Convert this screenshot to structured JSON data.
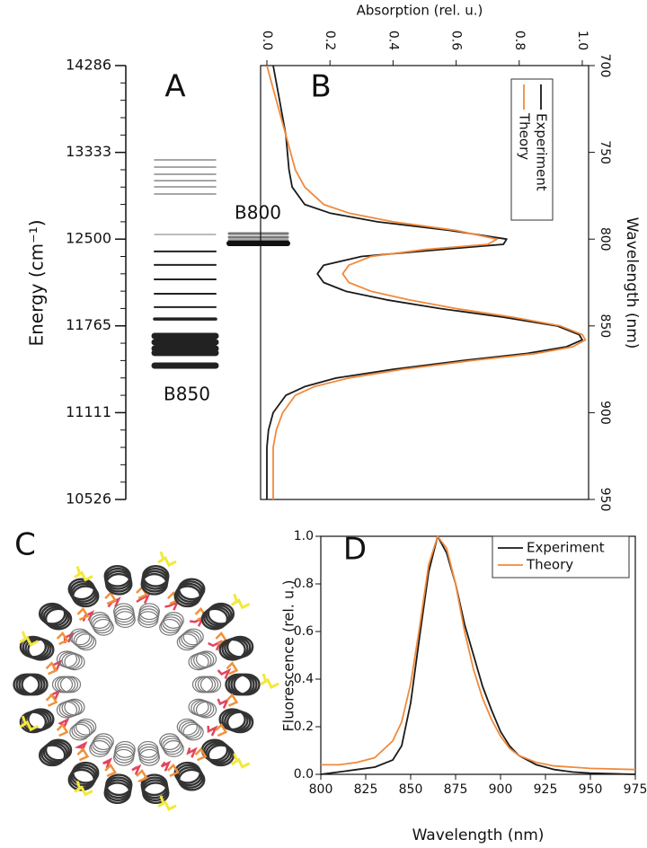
{
  "chart_data": [
    {
      "type": "levels",
      "label": "A",
      "ylabel": "Energy (cm⁻¹)",
      "ylim": [
        14286,
        10526
      ],
      "yscale": "reciprocal",
      "yticks": [
        14286,
        13333,
        12500,
        11765,
        11111,
        10526
      ],
      "groups": [
        {
          "name": "B850",
          "values": [
            13257,
            13184,
            13113,
            13050,
            12989,
            12920,
            12542,
            12390,
            12272,
            12148,
            12027,
            11916,
            11820,
            11685,
            11636,
            11587,
            11553,
            11456
          ]
        },
        {
          "name": "B800",
          "values": [
            12550,
            12517,
            12486,
            12461
          ]
        }
      ]
    },
    {
      "type": "line",
      "orientation": "vertical",
      "label": "B",
      "xlabel": "Wavelength (nm)",
      "ylabel": "Absorption (rel. u.)",
      "xlim": [
        700,
        950
      ],
      "xticks": [
        700,
        750,
        800,
        850,
        900,
        950
      ],
      "ylim": [
        -0.02,
        1.02
      ],
      "yticks": [
        {
          "value": 0,
          "label": "0.0"
        },
        0.2,
        0.4,
        0.6,
        0.8,
        {
          "value": 1,
          "label": "1.0"
        }
      ],
      "x": [
        700,
        720,
        740,
        760,
        770,
        780,
        785,
        790,
        795,
        800,
        803,
        806,
        810,
        815,
        820,
        825,
        830,
        835,
        840,
        845,
        850,
        855,
        858,
        862,
        866,
        870,
        875,
        880,
        885,
        890,
        900,
        910,
        920,
        950
      ],
      "series": [
        {
          "name": "Experiment",
          "color": "#1a1a1a",
          "values": [
            0.02,
            0.04,
            0.06,
            0.07,
            0.08,
            0.12,
            0.2,
            0.35,
            0.58,
            0.76,
            0.75,
            0.55,
            0.3,
            0.18,
            0.16,
            0.18,
            0.25,
            0.38,
            0.55,
            0.75,
            0.92,
            0.99,
            1.0,
            0.95,
            0.82,
            0.62,
            0.4,
            0.22,
            0.12,
            0.06,
            0.02,
            0.005,
            0,
            0
          ]
        },
        {
          "name": "Theory",
          "color": "#f08a3c",
          "values": [
            0.0,
            0.03,
            0.06,
            0.09,
            0.12,
            0.18,
            0.26,
            0.4,
            0.6,
            0.73,
            0.7,
            0.5,
            0.33,
            0.26,
            0.24,
            0.26,
            0.33,
            0.45,
            0.6,
            0.78,
            0.93,
            1.0,
            1.01,
            0.97,
            0.85,
            0.65,
            0.43,
            0.26,
            0.15,
            0.09,
            0.05,
            0.03,
            0.02,
            0.02
          ]
        }
      ]
    },
    {
      "type": "image",
      "label": "C"
    },
    {
      "type": "line",
      "label": "D",
      "xlabel": "Wavelength (nm)",
      "ylabel": "Fluorescence (rel. u.)",
      "xlim": [
        800,
        975
      ],
      "xticks": [
        800,
        825,
        850,
        875,
        900,
        925,
        950,
        975
      ],
      "ylim": [
        0,
        1
      ],
      "yticks": [
        {
          "value": 0,
          "label": "0.0"
        },
        0.2,
        0.4,
        0.6,
        0.8,
        {
          "value": 1,
          "label": "1.0"
        }
      ],
      "x": [
        800,
        810,
        820,
        830,
        840,
        845,
        850,
        855,
        860,
        865,
        870,
        875,
        880,
        885,
        890,
        895,
        900,
        905,
        910,
        920,
        930,
        940,
        950,
        975
      ],
      "series": [
        {
          "name": "Experiment",
          "color": "#1a1a1a",
          "values": [
            0.0,
            0.01,
            0.02,
            0.03,
            0.06,
            0.12,
            0.3,
            0.58,
            0.85,
            1.0,
            0.93,
            0.8,
            0.63,
            0.5,
            0.37,
            0.27,
            0.18,
            0.12,
            0.08,
            0.04,
            0.02,
            0.01,
            0.005,
            0
          ]
        },
        {
          "name": "Theory",
          "color": "#f08a3c",
          "values": [
            0.04,
            0.04,
            0.05,
            0.07,
            0.14,
            0.22,
            0.38,
            0.62,
            0.88,
            1.0,
            0.95,
            0.8,
            0.6,
            0.44,
            0.32,
            0.23,
            0.16,
            0.11,
            0.08,
            0.05,
            0.035,
            0.03,
            0.025,
            0.02
          ]
        }
      ]
    }
  ]
}
